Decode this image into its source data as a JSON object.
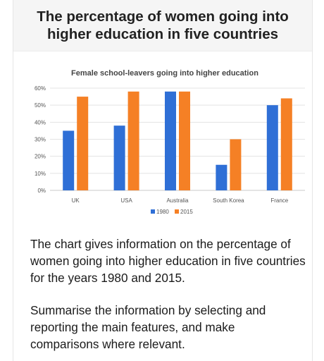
{
  "page": {
    "title": "The percentage of women going into higher education in five countries",
    "description": "The chart gives information on the percentage of women going into higher education in five countries for the years 1980 and 2015.",
    "task": "Summarise the information by selecting and reporting the main features, and make comparisons where relevant."
  },
  "chart_data": {
    "type": "bar",
    "title": "Female school-leavers going into higher education",
    "xlabel": "",
    "ylabel": "",
    "categories": [
      "UK",
      "USA",
      "Australia",
      "South Korea",
      "France"
    ],
    "series": [
      {
        "name": "1980",
        "values": [
          35,
          38,
          58,
          15,
          50
        ],
        "color": "#2f6fd6"
      },
      {
        "name": "2015",
        "values": [
          55,
          58,
          58,
          30,
          54
        ],
        "color": "#f58025"
      }
    ],
    "ylim": [
      0,
      60
    ],
    "yticks": [
      "0%",
      "10%",
      "20%",
      "30%",
      "40%",
      "50%",
      "60%"
    ],
    "grid": true,
    "legend": "bottom"
  }
}
